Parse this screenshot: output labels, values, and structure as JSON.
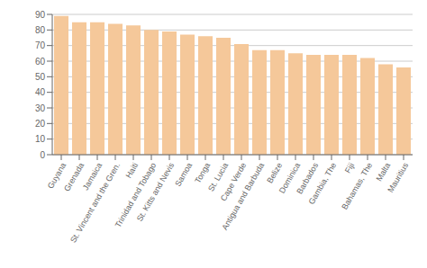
{
  "chart_data": {
    "type": "bar",
    "categories": [
      "Guyana",
      "Grenada",
      "Jamaica",
      "St. Vincent and the Gren.",
      "Haiti",
      "Trinidad and Tobago",
      "St. Kitts and Nevis",
      "Samoa",
      "Tonga",
      "St. Lucia",
      "Cape Verde",
      "Antigua and Barbuda",
      "Belize",
      "Dominica",
      "Barbados",
      "Gambia, The",
      "Fiji",
      "Bahamas, The",
      "Malta",
      "Mauritius"
    ],
    "values": [
      89,
      85,
      85,
      84,
      83,
      80,
      79,
      77,
      76,
      75,
      71,
      67,
      67,
      65,
      64,
      64,
      64,
      62,
      58,
      56
    ],
    "color": "#f5c89a",
    "ylim": [
      0,
      90
    ],
    "yticks": [
      0,
      10,
      20,
      30,
      40,
      50,
      60,
      70,
      80,
      90
    ],
    "grid": true
  }
}
